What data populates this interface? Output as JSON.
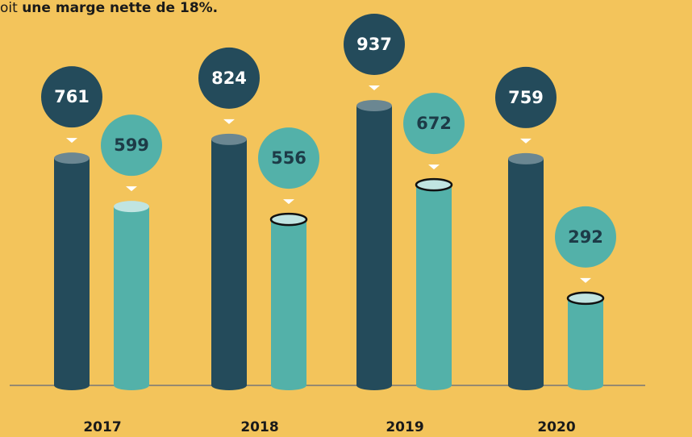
{
  "chart_data": {
    "type": "bar",
    "text_prefix": "oit ",
    "text_bold": "une marge nette de 18%.",
    "categories": [
      "2017",
      "2018",
      "2019",
      "2020"
    ],
    "series": [
      {
        "color": "#244b5b",
        "values": [
          761,
          824,
          937,
          759
        ]
      },
      {
        "color": "#53b1a9",
        "values": [
          599,
          556,
          672,
          292
        ]
      }
    ]
  }
}
